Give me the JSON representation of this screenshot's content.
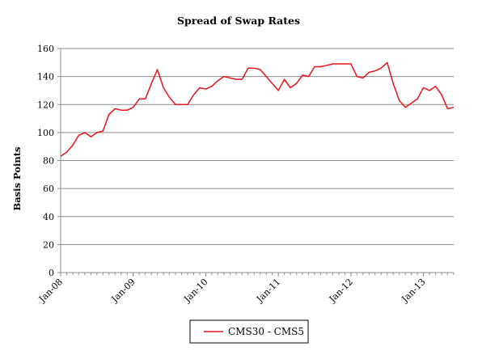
{
  "chart_data": {
    "type": "line",
    "title": "Spread of Swap Rates",
    "xlabel": "",
    "ylabel": "Basis Points",
    "ylim": [
      0,
      160
    ],
    "yticks": [
      0,
      20,
      40,
      60,
      80,
      100,
      120,
      140,
      160
    ],
    "xticks": [
      "Jan-08",
      "Jan-09",
      "Jan-10",
      "Jan-11",
      "Jan-12",
      "Jan-13"
    ],
    "grid": "horizontal",
    "legend_position": "bottom",
    "series": [
      {
        "name": "CMS30 - CMS5",
        "color": "#e8141c",
        "x": [
          "Jan-08",
          "Feb-08",
          "Mar-08",
          "Apr-08",
          "May-08",
          "Jun-08",
          "Jul-08",
          "Aug-08",
          "Sep-08",
          "Oct-08",
          "Nov-08",
          "Dec-08",
          "Jan-09",
          "Feb-09",
          "Mar-09",
          "Apr-09",
          "May-09",
          "Jun-09",
          "Jul-09",
          "Aug-09",
          "Sep-09",
          "Oct-09",
          "Nov-09",
          "Dec-09",
          "Jan-10",
          "Feb-10",
          "Mar-10",
          "Apr-10",
          "May-10",
          "Jun-10",
          "Jul-10",
          "Aug-10",
          "Sep-10",
          "Oct-10",
          "Nov-10",
          "Dec-10",
          "Jan-11",
          "Feb-11",
          "Mar-11",
          "Apr-11",
          "May-11",
          "Jun-11",
          "Jul-11",
          "Aug-11",
          "Sep-11",
          "Oct-11",
          "Nov-11",
          "Dec-11",
          "Jan-12",
          "Feb-12",
          "Mar-12",
          "Apr-12",
          "May-12",
          "Jun-12",
          "Jul-12",
          "Aug-12",
          "Sep-12",
          "Oct-12",
          "Nov-12",
          "Dec-12",
          "Jan-13",
          "Feb-13",
          "Mar-13",
          "Apr-13",
          "May-13",
          "Jun-13"
        ],
        "values": [
          83,
          86,
          91,
          98,
          100,
          97,
          100,
          101,
          113,
          117,
          116,
          116,
          118,
          124,
          124,
          135,
          145,
          132,
          125,
          120,
          120,
          120,
          127,
          132,
          131,
          133,
          137,
          140,
          139,
          138,
          138,
          146,
          146,
          145,
          140,
          135,
          130,
          138,
          132,
          135,
          141,
          140,
          147,
          147,
          148,
          149,
          149,
          149,
          149,
          140,
          139,
          143,
          144,
          146,
          150,
          135,
          123,
          118,
          121,
          124,
          132,
          130,
          133,
          127,
          117,
          118
        ]
      }
    ]
  }
}
